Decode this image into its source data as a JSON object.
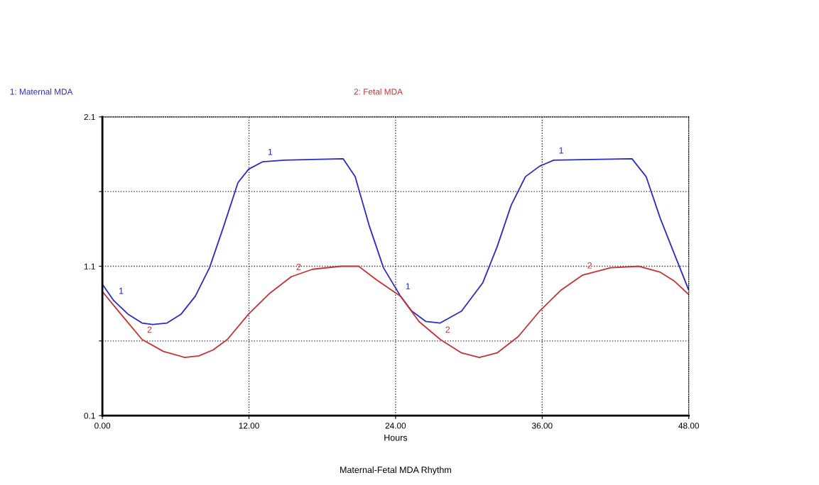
{
  "chart_data": {
    "type": "line",
    "title": "Maternal-Fetal MDA Rhythm",
    "xlabel": "Hours",
    "xlim": [
      0,
      48
    ],
    "xticks": [
      {
        "value": 0,
        "label": "0.00"
      },
      {
        "value": 12,
        "label": "12.00"
      },
      {
        "value": 24,
        "label": "24.00"
      },
      {
        "value": 36,
        "label": "36.00"
      },
      {
        "value": 48,
        "label": "48.00"
      }
    ],
    "ylim": [
      0.1,
      2.1
    ],
    "yticks": [
      0.1,
      {
        "value": 0.6,
        "label": null
      },
      1.1,
      {
        "value": 1.6,
        "label": null
      },
      2.1
    ],
    "grid": true,
    "marker": "none",
    "line_style": "solid",
    "series": [
      {
        "name": "1: Maternal MDA",
        "color": "#2b2bc8",
        "x": [
          0,
          0.93,
          2.09,
          3.25,
          4.13,
          5.29,
          6.45,
          7.61,
          8.77,
          9.94,
          11.1,
          11.97,
          13.13,
          14.88,
          19.7,
          20.69,
          21.85,
          23.01,
          24.4,
          25.33,
          26.49,
          27.65,
          29.4,
          31.14,
          32.31,
          33.47,
          34.63,
          35.79,
          36.95,
          43.35,
          44.51,
          45.67,
          46.83,
          48
        ],
        "values": [
          0.98,
          0.87,
          0.78,
          0.72,
          0.71,
          0.72,
          0.78,
          0.9,
          1.09,
          1.37,
          1.66,
          1.75,
          1.8,
          1.81,
          1.82,
          1.7,
          1.37,
          1.09,
          0.9,
          0.8,
          0.73,
          0.72,
          0.8,
          0.99,
          1.23,
          1.51,
          1.7,
          1.77,
          1.81,
          1.82,
          1.7,
          1.42,
          1.18,
          0.94
        ]
      },
      {
        "name": "2: Fetal MDA",
        "color": "#c83232",
        "x": [
          0,
          1.51,
          3.25,
          5.0,
          6.74,
          7.9,
          9.06,
          10.23,
          11.97,
          13.71,
          15.46,
          17.2,
          19.52,
          20.98,
          22.43,
          24.4,
          25.92,
          27.66,
          29.4,
          30.85,
          32.31,
          34.05,
          35.79,
          37.54,
          39.28,
          41.6,
          43.93,
          45.67,
          46.83,
          48
        ],
        "values": [
          0.93,
          0.78,
          0.61,
          0.53,
          0.49,
          0.5,
          0.54,
          0.61,
          0.78,
          0.92,
          1.03,
          1.08,
          1.1,
          1.1,
          1.01,
          0.9,
          0.73,
          0.61,
          0.52,
          0.49,
          0.52,
          0.63,
          0.8,
          0.94,
          1.04,
          1.09,
          1.1,
          1.06,
          1.0,
          0.91
        ]
      }
    ],
    "annotations": [
      {
        "text": "1",
        "x": 0.93,
        "y": 0.87
      },
      {
        "text": "1",
        "x": 13.13,
        "y": 1.8
      },
      {
        "text": "1",
        "x": 24.4,
        "y": 0.9
      },
      {
        "text": "1",
        "x": 36.95,
        "y": 1.81
      },
      {
        "text": "2",
        "x": 3.25,
        "y": 0.61
      },
      {
        "text": "2",
        "x": 15.46,
        "y": 1.03
      },
      {
        "text": "2",
        "x": 27.66,
        "y": 0.61
      },
      {
        "text": "2",
        "x": 39.28,
        "y": 1.04
      }
    ]
  }
}
